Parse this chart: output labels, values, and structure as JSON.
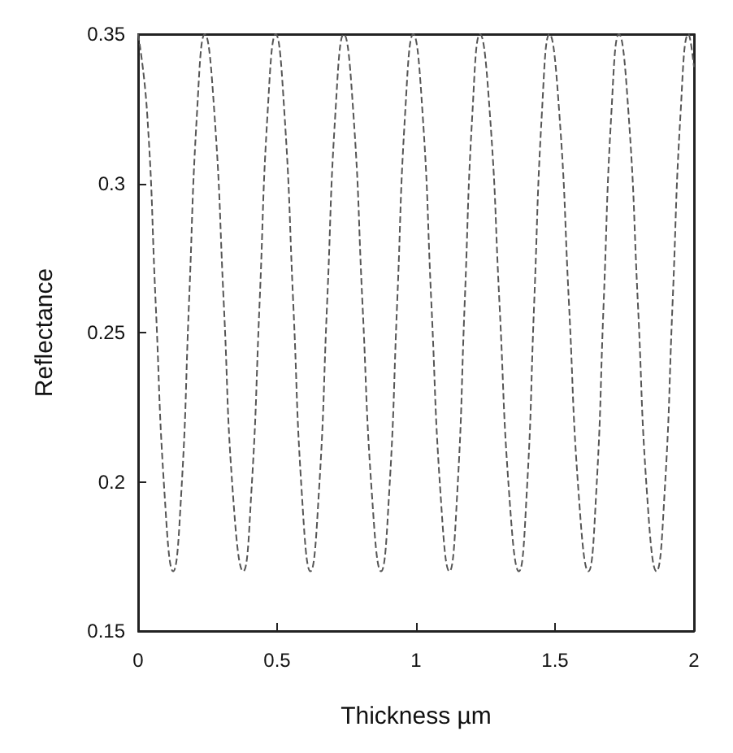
{
  "chart_data": {
    "type": "line",
    "xlabel": "Thickness µm",
    "ylabel": "Reflectance",
    "xlim": [
      0,
      2
    ],
    "xticks": [
      0,
      0.5,
      1,
      1.5,
      2
    ],
    "ylim": [
      0.15,
      0.35
    ],
    "yticks": [
      0.15,
      0.2,
      0.25,
      0.3,
      0.35
    ],
    "grid": false,
    "marker": "none",
    "line_style": "dashed",
    "series": [
      {
        "color": "#555555",
        "x": [
          0,
          0.032,
          0.063,
          0.095,
          0.126,
          0.155,
          0.183,
          0.212,
          0.24,
          0.274,
          0.308,
          0.341,
          0.378,
          0.407,
          0.437,
          0.466,
          0.495,
          0.526,
          0.558,
          0.589,
          0.62,
          0.65,
          0.68,
          0.71,
          0.74,
          0.774,
          0.807,
          0.841,
          0.874,
          0.903,
          0.932,
          0.961,
          0.99,
          1.023,
          1.055,
          1.088,
          1.12,
          1.148,
          1.175,
          1.203,
          1.23,
          1.265,
          1.3,
          1.335,
          1.37,
          1.398,
          1.425,
          1.453,
          1.48,
          1.515,
          1.55,
          1.585,
          1.62,
          1.648,
          1.675,
          1.703,
          1.73,
          1.764,
          1.798,
          1.831,
          1.865,
          1.894,
          1.923,
          1.952,
          1.98,
          2.0
        ],
        "values": [
          0.35,
          0.324,
          0.26,
          0.196,
          0.17,
          0.196,
          0.26,
          0.324,
          0.35,
          0.324,
          0.26,
          0.196,
          0.17,
          0.196,
          0.26,
          0.324,
          0.35,
          0.324,
          0.26,
          0.196,
          0.17,
          0.196,
          0.26,
          0.324,
          0.35,
          0.324,
          0.26,
          0.196,
          0.17,
          0.196,
          0.26,
          0.324,
          0.35,
          0.324,
          0.26,
          0.196,
          0.17,
          0.196,
          0.26,
          0.324,
          0.35,
          0.324,
          0.26,
          0.196,
          0.17,
          0.196,
          0.26,
          0.324,
          0.35,
          0.324,
          0.26,
          0.196,
          0.17,
          0.196,
          0.26,
          0.324,
          0.35,
          0.324,
          0.26,
          0.196,
          0.17,
          0.196,
          0.26,
          0.324,
          0.35,
          0.339
        ]
      }
    ]
  }
}
